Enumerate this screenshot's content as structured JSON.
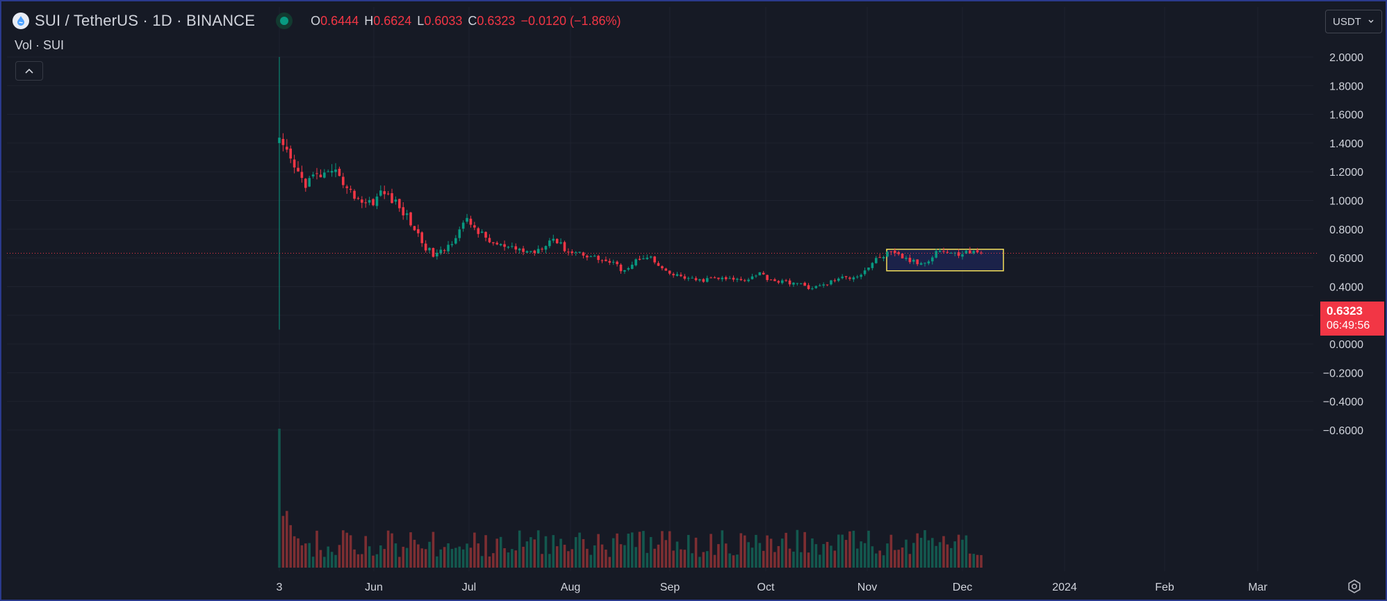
{
  "header": {
    "symbol_title": "SUI / TetherUS · 1D · BINANCE",
    "ohlc": [
      {
        "key": "O",
        "value": "0.6444"
      },
      {
        "key": "H",
        "value": "0.6624"
      },
      {
        "key": "L",
        "value": "0.6033"
      },
      {
        "key": "C",
        "value": "0.6323"
      }
    ],
    "change": "−0.0120 (−1.86%)",
    "icons": {
      "symbol_logo": "sui-logo-icon",
      "live_status": "market-open-dot-icon"
    }
  },
  "volume_label": "Vol · SUI",
  "currency_selector": {
    "value": "USDT"
  },
  "last_price_tag": {
    "price": "0.6323",
    "countdown": "06:49:56"
  },
  "colors": {
    "background": "#161a25",
    "up": "#089981",
    "down": "#f23645",
    "volume_up": "#13584e",
    "volume_down": "#7d2e32",
    "grid": "#1f232f",
    "highlight_box": "#f5e05a",
    "highlight_fill": "#1c2450",
    "frame_border": "#2a3a8c"
  },
  "chart_data": {
    "type": "candlestick",
    "title": "SUI / TetherUS · 1D · BINANCE",
    "x_labels": [
      "3",
      "Jun",
      "Jul",
      "Aug",
      "Sep",
      "Oct",
      "Nov",
      "Dec",
      "2024",
      "Feb",
      "Mar"
    ],
    "y_ticks": [
      "2.0000",
      "1.8000",
      "1.6000",
      "1.4000",
      "1.2000",
      "1.0000",
      "0.8000",
      "0.6000",
      "0.4000",
      "0.2000",
      "0.0000",
      "−0.2000",
      "−0.4000",
      "−0.6000"
    ],
    "ylim": [
      -0.7,
      2.0
    ],
    "grid": true,
    "last_price": 0.6323,
    "close_path": [
      1.4,
      1.3,
      1.2,
      1.12,
      1.16,
      1.18,
      1.16,
      1.2,
      1.06,
      1.03,
      0.98,
      1.0,
      1.06,
      1.02,
      0.95,
      0.88,
      0.78,
      0.68,
      0.62,
      0.64,
      0.7,
      0.8,
      0.86,
      0.8,
      0.74,
      0.7,
      0.68,
      0.66,
      0.66,
      0.64,
      0.65,
      0.7,
      0.74,
      0.68,
      0.64,
      0.64,
      0.62,
      0.6,
      0.58,
      0.56,
      0.52,
      0.54,
      0.6,
      0.62,
      0.56,
      0.5,
      0.48,
      0.47,
      0.45,
      0.44,
      0.45,
      0.46,
      0.45,
      0.45,
      0.45,
      0.46,
      0.5,
      0.46,
      0.44,
      0.43,
      0.43,
      0.41,
      0.39,
      0.4,
      0.42,
      0.45,
      0.46,
      0.47,
      0.49,
      0.55,
      0.6,
      0.63,
      0.62,
      0.6,
      0.57,
      0.56,
      0.6,
      0.66,
      0.64,
      0.62,
      0.64,
      0.64,
      0.63
    ],
    "highlight_box": {
      "x_range": [
        "Nov 7",
        "Dec 10"
      ],
      "price_range": [
        0.51,
        0.66
      ]
    },
    "volume": {
      "label": "Vol · SUI",
      "first_day_relative_height": 1.0,
      "typical_relative_height": 0.22
    }
  }
}
